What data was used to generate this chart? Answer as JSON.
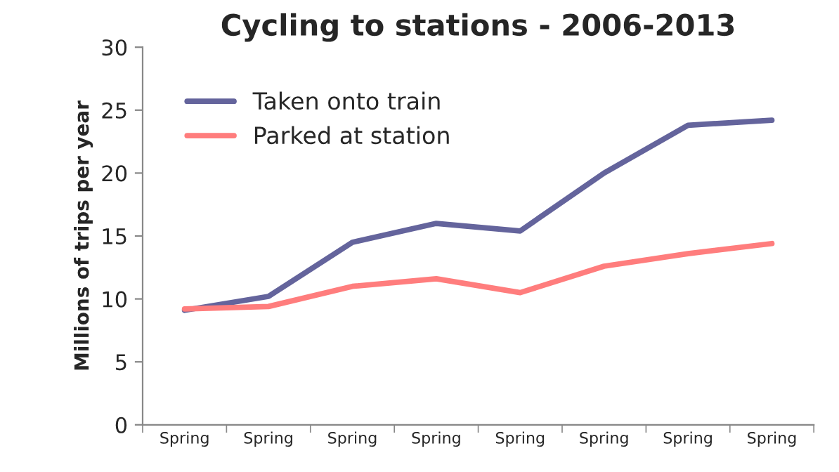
{
  "chart_data": {
    "type": "line",
    "title": "Cycling to stations - 2006-2013",
    "ylabel": "Millions of trips per year",
    "categories": [
      "Spring",
      "Spring",
      "Spring",
      "Spring",
      "Spring",
      "Spring",
      "Spring",
      "Spring"
    ],
    "series": [
      {
        "name": "Taken onto train",
        "color": "#64649c",
        "values": [
          9.1,
          10.2,
          14.5,
          16.0,
          15.4,
          20.0,
          23.8,
          24.2
        ]
      },
      {
        "name": "Parked at station",
        "color": "#ff7d7d",
        "values": [
          9.2,
          9.4,
          11.0,
          11.6,
          10.5,
          12.6,
          13.6,
          14.4
        ]
      }
    ],
    "ylim": [
      0,
      30
    ],
    "yticks": [
      0,
      5,
      10,
      15,
      20,
      25,
      30
    ],
    "grid": false,
    "legend": "top left",
    "line_style": "solid",
    "marker": "none"
  }
}
